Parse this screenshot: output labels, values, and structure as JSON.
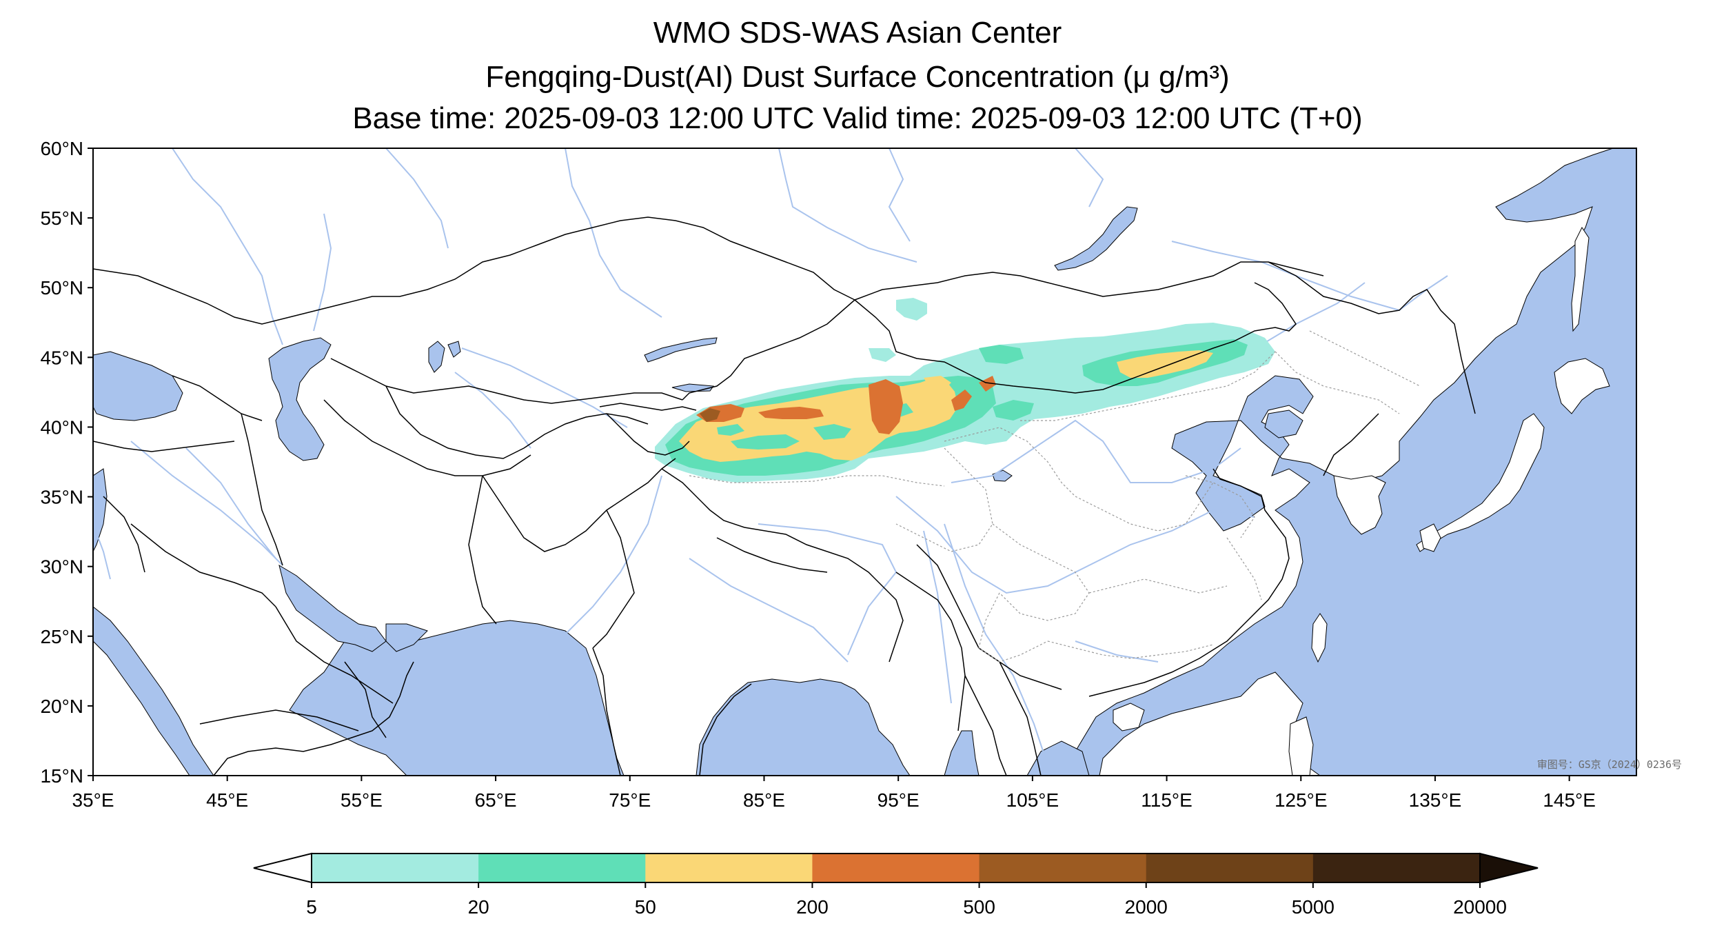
{
  "titles": {
    "line1": "WMO SDS-WAS Asian Center",
    "line2": "Fengqing-Dust(AI) Dust Surface Concentration (μ g/m³)",
    "line3": "Base time: 2025-09-03 12:00 UTC Valid time: 2025-09-03 12:00 UTC (T+0)"
  },
  "axes": {
    "lon_labels": [
      "35°E",
      "45°E",
      "55°E",
      "65°E",
      "75°E",
      "85°E",
      "95°E",
      "105°E",
      "115°E",
      "125°E",
      "135°E",
      "145°E"
    ],
    "lat_labels": [
      "60°N",
      "55°N",
      "50°N",
      "45°N",
      "40°N",
      "35°N",
      "30°N",
      "25°N",
      "20°N",
      "15°N"
    ],
    "lon_range": [
      35,
      150
    ],
    "lat_range": [
      15,
      60
    ]
  },
  "colorbar": {
    "labels": [
      "5",
      "20",
      "50",
      "200",
      "500",
      "2000",
      "5000",
      "20000"
    ],
    "colors": [
      "#a3ebe0",
      "#5fdfb7",
      "#fad776",
      "#db7232",
      "#9c5b22",
      "#6e4218",
      "#3b2411"
    ],
    "extend": "both"
  },
  "colors": {
    "ocean": "#a9c3ed",
    "river": "#a9c3ed",
    "land": "#ffffff",
    "border": "#000000"
  },
  "watermark": "审图号：GS京（2024）0236号"
}
